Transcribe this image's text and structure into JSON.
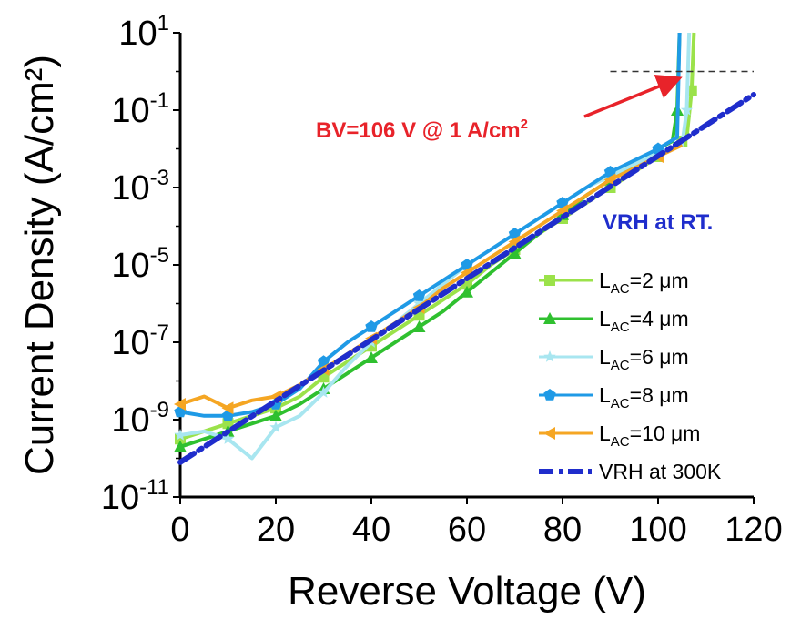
{
  "chart_data": {
    "type": "line",
    "title": "",
    "xlabel": "Reverse Voltage (V)",
    "ylabel": "Current Density (A/cm²)",
    "xlim": [
      0,
      120
    ],
    "ylim_log10": [
      -11,
      1
    ],
    "x_ticks": [
      0,
      20,
      40,
      60,
      80,
      100,
      120
    ],
    "y_ticks": [
      {
        "base": "10",
        "exp": "1",
        "log": 1
      },
      {
        "base": "10",
        "exp": "-1",
        "log": -1
      },
      {
        "base": "10",
        "exp": "-3",
        "log": -3
      },
      {
        "base": "10",
        "exp": "-5",
        "log": -5
      },
      {
        "base": "10",
        "exp": "-7",
        "log": -7
      },
      {
        "base": "10",
        "exp": "-9",
        "log": -9
      },
      {
        "base": "10",
        "exp": "-11",
        "log": -11
      }
    ],
    "series": [
      {
        "name": "L_AC=2 μm",
        "label_main": "L",
        "label_sub": "AC",
        "label_rest": "=2 μm",
        "color": "#9be24a",
        "marker": "square",
        "x": [
          0,
          5,
          10,
          15,
          20,
          25,
          30,
          35,
          40,
          45,
          50,
          55,
          60,
          65,
          70,
          75,
          80,
          85,
          90,
          95,
          100,
          104,
          105,
          106,
          107,
          107.5
        ],
        "log_y": [
          -9.5,
          -9.3,
          -9.1,
          -8.9,
          -8.7,
          -8.4,
          -7.9,
          -7.5,
          -7.1,
          -6.7,
          -6.3,
          -5.9,
          -5.5,
          -5.0,
          -4.6,
          -4.2,
          -3.8,
          -3.4,
          -3.0,
          -2.6,
          -2.2,
          -1.9,
          -1.8,
          -1.7,
          -0.5,
          1
        ]
      },
      {
        "name": "L_AC=4 μm",
        "label_main": "L",
        "label_sub": "AC",
        "label_rest": "=4 μm",
        "color": "#2fc02f",
        "marker": "triangle-up",
        "x": [
          0,
          5,
          10,
          15,
          20,
          25,
          30,
          35,
          40,
          45,
          50,
          55,
          60,
          65,
          70,
          75,
          80,
          85,
          90,
          95,
          100,
          103,
          104,
          104.5
        ],
        "log_y": [
          -9.7,
          -9.5,
          -9.3,
          -9.1,
          -8.9,
          -8.6,
          -8.2,
          -7.8,
          -7.4,
          -7.0,
          -6.6,
          -6.2,
          -5.7,
          -5.2,
          -4.7,
          -4.2,
          -3.7,
          -3.2,
          -2.8,
          -2.4,
          -2.0,
          -1.8,
          -1.0,
          1
        ]
      },
      {
        "name": "L_AC=6 μm",
        "label_main": "L",
        "label_sub": "AC",
        "label_rest": "=6 μm",
        "color": "#a8e6f0",
        "marker": "star",
        "x": [
          0,
          5,
          10,
          15,
          20,
          25,
          30,
          35,
          40,
          45,
          50,
          55,
          60,
          65,
          70,
          75,
          80,
          85,
          90,
          95,
          100,
          105,
          106,
          106.5
        ],
        "log_y": [
          -9.4,
          -9.3,
          -9.5,
          -10.0,
          -9.2,
          -8.9,
          -8.3,
          -7.6,
          -7.0,
          -6.5,
          -6.0,
          -5.5,
          -5.0,
          -4.6,
          -4.2,
          -3.8,
          -3.4,
          -3.0,
          -2.7,
          -2.4,
          -2.1,
          -1.9,
          -1.0,
          1
        ]
      },
      {
        "name": "L_AC=8 μm",
        "label_main": "L",
        "label_sub": "AC",
        "label_rest": "=8 μm",
        "color": "#1f9ae6",
        "marker": "pentagon",
        "x": [
          0,
          5,
          10,
          15,
          20,
          25,
          30,
          35,
          40,
          45,
          50,
          55,
          60,
          65,
          70,
          75,
          80,
          85,
          90,
          95,
          100,
          104,
          104.5
        ],
        "log_y": [
          -8.8,
          -8.9,
          -8.9,
          -8.8,
          -8.6,
          -8.2,
          -7.5,
          -7.0,
          -6.6,
          -6.2,
          -5.8,
          -5.4,
          -5.0,
          -4.6,
          -4.2,
          -3.8,
          -3.4,
          -3.0,
          -2.6,
          -2.3,
          -2.0,
          -1.7,
          1
        ]
      },
      {
        "name": "L_AC=10 μm",
        "label_main": "L",
        "label_sub": "AC",
        "label_rest": "=10 μm",
        "color": "#f5a623",
        "marker": "triangle-left",
        "x": [
          0,
          5,
          10,
          15,
          20,
          25,
          30,
          35,
          40,
          45,
          50,
          55,
          60,
          65,
          70,
          75,
          80,
          85,
          90,
          95,
          100,
          105
        ],
        "log_y": [
          -8.6,
          -8.4,
          -8.7,
          -8.5,
          -8.4,
          -8.1,
          -7.7,
          -7.3,
          -6.9,
          -6.5,
          -6.1,
          -5.6,
          -5.2,
          -4.8,
          -4.4,
          -4.0,
          -3.6,
          -3.2,
          -2.8,
          -2.5,
          -2.2,
          -1.9
        ]
      },
      {
        "name": "VRH at 300K",
        "label_main": "VRH at 300K",
        "label_sub": "",
        "label_rest": "",
        "color": "#1f2dcc",
        "marker": "dashdot",
        "x": [
          0,
          120
        ],
        "log_y": [
          -10.1,
          -0.6
        ]
      }
    ],
    "annotations": {
      "bv_text": "BV=106 V @ 1 A/cm",
      "bv_sup": "2",
      "bv_target": {
        "x": 104,
        "log_y": 0
      },
      "vrh_rt_text": "VRH at RT.",
      "dashed_level": {
        "log_y": 0,
        "x_from": 90,
        "x_to": 120
      }
    },
    "colors": {
      "bv_arrow": "#e8232a",
      "vrh": "#1f2dcc",
      "axis": "#000000"
    }
  }
}
